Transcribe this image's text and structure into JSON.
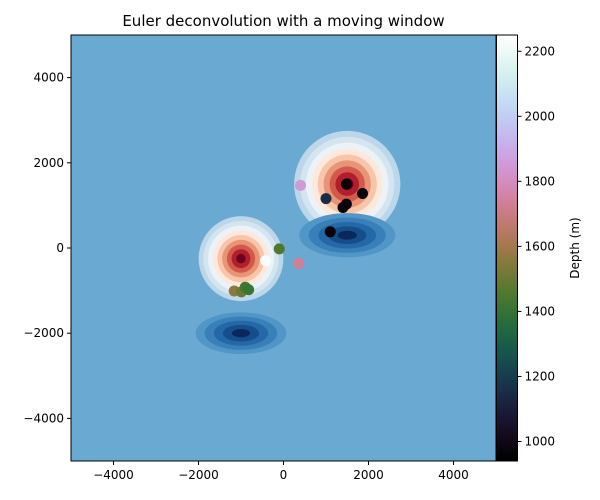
{
  "chart_data": {
    "type": "scatter",
    "title": "Euler deconvolution with a moving window",
    "xlabel": "",
    "ylabel": "",
    "xlim": [
      -5000,
      5000
    ],
    "ylim": [
      -5000,
      5000
    ],
    "x_ticks": [
      -4000,
      -2000,
      0,
      2000,
      4000
    ],
    "y_ticks": [
      -4000,
      -2000,
      0,
      2000,
      4000
    ],
    "x_tick_labels": [
      "−4000",
      "−2000",
      "0",
      "2000",
      "4000"
    ],
    "y_tick_labels": [
      "−4000",
      "−2000",
      "0",
      "2000",
      "4000"
    ],
    "grid": false,
    "background_field": {
      "type": "filled-contour",
      "colormap": "RdBu_r",
      "anomalies": [
        {
          "x": 1500,
          "y": 1500,
          "sign": "positive",
          "strength": 1.0
        },
        {
          "x": -1000,
          "y": -250,
          "sign": "positive",
          "strength": 0.55
        },
        {
          "x": 1500,
          "y": 300,
          "sign": "negative",
          "strength": 0.55
        },
        {
          "x": -1000,
          "y": -2000,
          "sign": "negative",
          "strength": 0.45
        }
      ]
    },
    "colorbar": {
      "label": "Depth (m)",
      "colormap": "cubehelix",
      "range": [
        940,
        2250
      ],
      "ticks": [
        1000,
        1200,
        1400,
        1600,
        1800,
        2000,
        2200
      ],
      "tick_labels": [
        "1000",
        "1200",
        "1400",
        "1600",
        "1800",
        "2000",
        "2200"
      ]
    },
    "points": [
      {
        "x": 1480,
        "y": 1500,
        "depth": 960
      },
      {
        "x": 1860,
        "y": 1280,
        "depth": 970
      },
      {
        "x": 1000,
        "y": 1160,
        "depth": 1150
      },
      {
        "x": 1480,
        "y": 1030,
        "depth": 980
      },
      {
        "x": 1400,
        "y": 950,
        "depth": 970
      },
      {
        "x": 1100,
        "y": 380,
        "depth": 975
      },
      {
        "x": 400,
        "y": 1470,
        "depth": 1850
      },
      {
        "x": -100,
        "y": -20,
        "depth": 1450
      },
      {
        "x": 360,
        "y": -360,
        "depth": 1730
      },
      {
        "x": -420,
        "y": -300,
        "depth": 2230
      },
      {
        "x": -1160,
        "y": -1010,
        "depth": 1560
      },
      {
        "x": -990,
        "y": -1030,
        "depth": 1500
      },
      {
        "x": -900,
        "y": -920,
        "depth": 1430
      },
      {
        "x": -820,
        "y": -980,
        "depth": 1410
      }
    ]
  }
}
